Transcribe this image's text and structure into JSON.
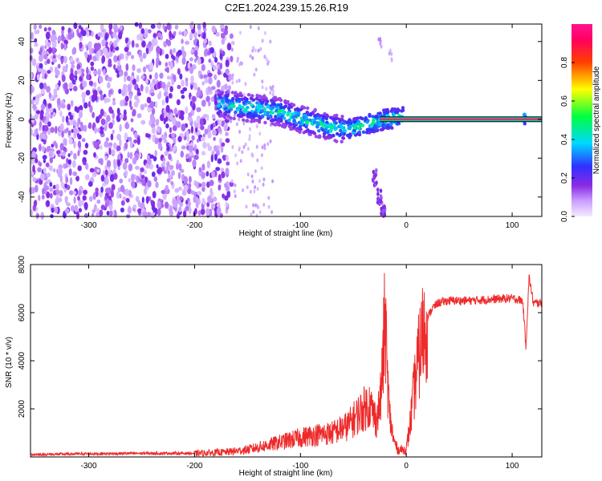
{
  "title": "C2E1.2024.239.15.26.R19",
  "colors": {
    "snr_line": "#ee2a2a",
    "spectrum_point": "#8a2be2",
    "axis": "#000000",
    "background": "#ffffff"
  },
  "colorbar": {
    "label": "Normalized spectral amplitude",
    "ticks": [
      "0.0",
      "0.2",
      "0.4",
      "0.6",
      "0.8"
    ],
    "tick_values": [
      0.0,
      0.2,
      0.4,
      0.6,
      0.8
    ],
    "range": [
      0,
      1
    ]
  },
  "chart_data": [
    {
      "type": "heatmap",
      "title": "",
      "xlabel": "Height of straight line (km)",
      "ylabel": "Frequency (Hz)",
      "xlim": [
        -355,
        128
      ],
      "ylim": [
        -50,
        49
      ],
      "x_ticks": [
        "-300",
        "-200",
        "-100",
        "0",
        "100"
      ],
      "x_tick_values": [
        -300,
        -200,
        -100,
        0,
        100
      ],
      "y_ticks": [
        "-40",
        "-20",
        "0",
        "20",
        "40"
      ],
      "y_tick_values": [
        -40,
        -20,
        0,
        20,
        40
      ],
      "colorscale": "rainbow (violet → blue → cyan → green → yellow → red → magenta)",
      "features": {
        "noise_region_x": [
          -355,
          -165
        ],
        "dispersed_ridge": [
          [
            -175,
            8
          ],
          [
            -150,
            6
          ],
          [
            -120,
            4
          ],
          [
            -100,
            0
          ],
          [
            -80,
            -3
          ],
          [
            -60,
            -5
          ],
          [
            -45,
            -4
          ],
          [
            -35,
            -2
          ],
          [
            -20,
            0
          ],
          [
            -5,
            1
          ]
        ],
        "strong_carrier": {
          "x_start": -25,
          "x_end": 128,
          "frequency_hz": 0
        },
        "fading_branch_negative": [
          [
            -30,
            -30
          ],
          [
            -25,
            -40
          ],
          [
            -22,
            -48
          ]
        ],
        "fading_branch_positive": [
          [
            -25,
            40
          ],
          [
            -15,
            33
          ]
        ],
        "spike_x": 112
      }
    },
    {
      "type": "line",
      "title": "",
      "xlabel": "Height of straight line (km)",
      "ylabel": "SNR (10 * v/v)",
      "xlim": [
        -355,
        128
      ],
      "ylim": [
        0,
        8000
      ],
      "x_ticks": [
        "-300",
        "-200",
        "-100",
        "0",
        "100"
      ],
      "x_tick_values": [
        -300,
        -200,
        -100,
        0,
        100
      ],
      "y_ticks": [
        "2000",
        "4000",
        "6000",
        "8000"
      ],
      "y_tick_values": [
        2000,
        4000,
        6000,
        8000
      ],
      "series": [
        {
          "x": [
            -355,
            -300,
            -250,
            -200,
            -170,
            -150,
            -130,
            -110,
            -90,
            -70,
            -55,
            -45,
            -35,
            -28,
            -24,
            -20,
            -18,
            -16,
            -12,
            -8,
            -4,
            0,
            4,
            8,
            12,
            16,
            20,
            25,
            30,
            40,
            60,
            80,
            100,
            110,
            113,
            116,
            120,
            128
          ],
          "values": [
            100,
            130,
            150,
            150,
            200,
            300,
            500,
            700,
            900,
            1000,
            1300,
            1800,
            2200,
            1500,
            2500,
            5800,
            3500,
            1800,
            700,
            300,
            300,
            300,
            1500,
            3000,
            4200,
            5200,
            5800,
            6200,
            6400,
            6500,
            6500,
            6550,
            6600,
            6500,
            4600,
            7500,
            6400,
            6400
          ]
        }
      ]
    }
  ]
}
